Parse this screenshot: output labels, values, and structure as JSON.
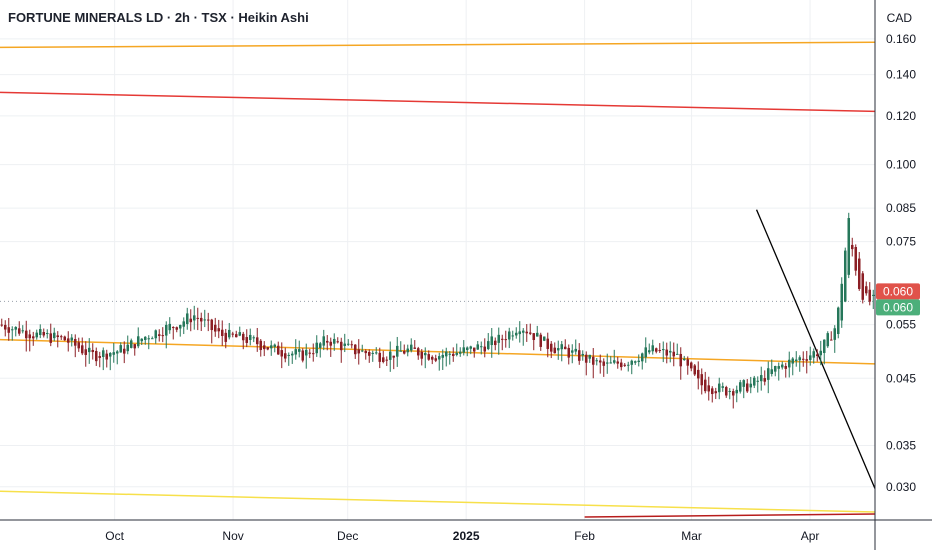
{
  "header": {
    "title": "FORTUNE MINERALS LD · 2h · TSX · Heikin Ashi",
    "currency": "CAD"
  },
  "colors": {
    "up": "#26775a",
    "down": "#8b1e24",
    "grid": "#eef0f3",
    "axis_text": "#131722",
    "orange_line": "#f5a623",
    "red_line": "#e53935",
    "yellow_line": "#f7e04a",
    "dark_red_line": "#b71c1c",
    "trend_line": "#000000",
    "last_price_red": "#e0524a",
    "last_price_green": "#4caf7a"
  },
  "chart_data": {
    "type": "candlestick",
    "style": "Heikin Ashi",
    "symbol": "FORTUNE MINERALS LD",
    "interval": "2h",
    "exchange": "TSX",
    "currency": "CAD",
    "y_scale": "log",
    "ylim": [
      0.0265,
      0.185
    ],
    "y_ticks": [
      "0.160",
      "0.140",
      "0.120",
      "0.100",
      "0.085",
      "0.075",
      "0.055",
      "0.045",
      "0.035",
      "0.030"
    ],
    "x_ticks": [
      "Oct",
      "Nov",
      "Dec",
      "2025",
      "Feb",
      "Mar",
      "Apr"
    ],
    "x_range": [
      "2024-09-01",
      "2025-04-18"
    ],
    "last_price_labels": [
      "0.060",
      "0.060"
    ],
    "grid": true,
    "legend": "none",
    "price_path": [
      [
        "2024-09-01",
        0.055
      ],
      [
        "2024-09-10",
        0.053
      ],
      [
        "2024-09-18",
        0.052
      ],
      [
        "2024-09-25",
        0.049
      ],
      [
        "2024-10-03",
        0.05
      ],
      [
        "2024-10-10",
        0.053
      ],
      [
        "2024-10-17",
        0.055
      ],
      [
        "2024-10-22",
        0.057
      ],
      [
        "2024-10-28",
        0.053
      ],
      [
        "2024-11-05",
        0.052
      ],
      [
        "2024-11-12",
        0.05
      ],
      [
        "2024-11-19",
        0.049
      ],
      [
        "2024-11-26",
        0.052
      ],
      [
        "2024-12-02",
        0.05
      ],
      [
        "2024-12-10",
        0.049
      ],
      [
        "2024-12-17",
        0.05
      ],
      [
        "2024-12-24",
        0.049
      ],
      [
        "2025-01-02",
        0.05
      ],
      [
        "2025-01-10",
        0.052
      ],
      [
        "2025-01-15",
        0.055
      ],
      [
        "2025-01-22",
        0.051
      ],
      [
        "2025-01-30",
        0.049
      ],
      [
        "2025-02-06",
        0.047
      ],
      [
        "2025-02-12",
        0.048
      ],
      [
        "2025-02-18",
        0.05
      ],
      [
        "2025-02-25",
        0.049
      ],
      [
        "2025-03-03",
        0.044
      ],
      [
        "2025-03-10",
        0.043
      ],
      [
        "2025-03-17",
        0.044
      ],
      [
        "2025-03-24",
        0.047
      ],
      [
        "2025-03-31",
        0.049
      ],
      [
        "2025-04-04",
        0.05
      ],
      [
        "2025-04-08",
        0.055
      ],
      [
        "2025-04-10",
        0.07
      ],
      [
        "2025-04-11",
        0.082
      ],
      [
        "2025-04-12",
        0.073
      ],
      [
        "2025-04-14",
        0.063
      ],
      [
        "2025-04-16",
        0.06
      ],
      [
        "2025-04-18",
        0.06
      ]
    ],
    "drawn_lines": [
      {
        "name": "orange-upper-line",
        "color": "orange",
        "points": [
          [
            "2024-09-01",
            0.155
          ],
          [
            "2025-04-18",
            0.158
          ]
        ]
      },
      {
        "name": "red-line",
        "color": "red",
        "points": [
          [
            "2024-09-01",
            0.131
          ],
          [
            "2025-04-18",
            0.122
          ]
        ]
      },
      {
        "name": "orange-lower-line",
        "color": "orange",
        "points": [
          [
            "2024-09-01",
            0.052
          ],
          [
            "2025-04-18",
            0.0475
          ]
        ]
      },
      {
        "name": "yellow-line",
        "color": "yellow",
        "points": [
          [
            "2024-09-01",
            0.0295
          ],
          [
            "2025-04-18",
            0.0273
          ]
        ]
      },
      {
        "name": "trend-line",
        "color": "black",
        "points": [
          [
            "2025-03-18",
            0.0845
          ],
          [
            "2025-04-18",
            0.0298
          ]
        ]
      },
      {
        "name": "dark-red-line",
        "color": "darkred",
        "points": [
          [
            "2025-02-01",
            0.0268
          ],
          [
            "2025-04-18",
            0.0271
          ]
        ]
      }
    ]
  }
}
